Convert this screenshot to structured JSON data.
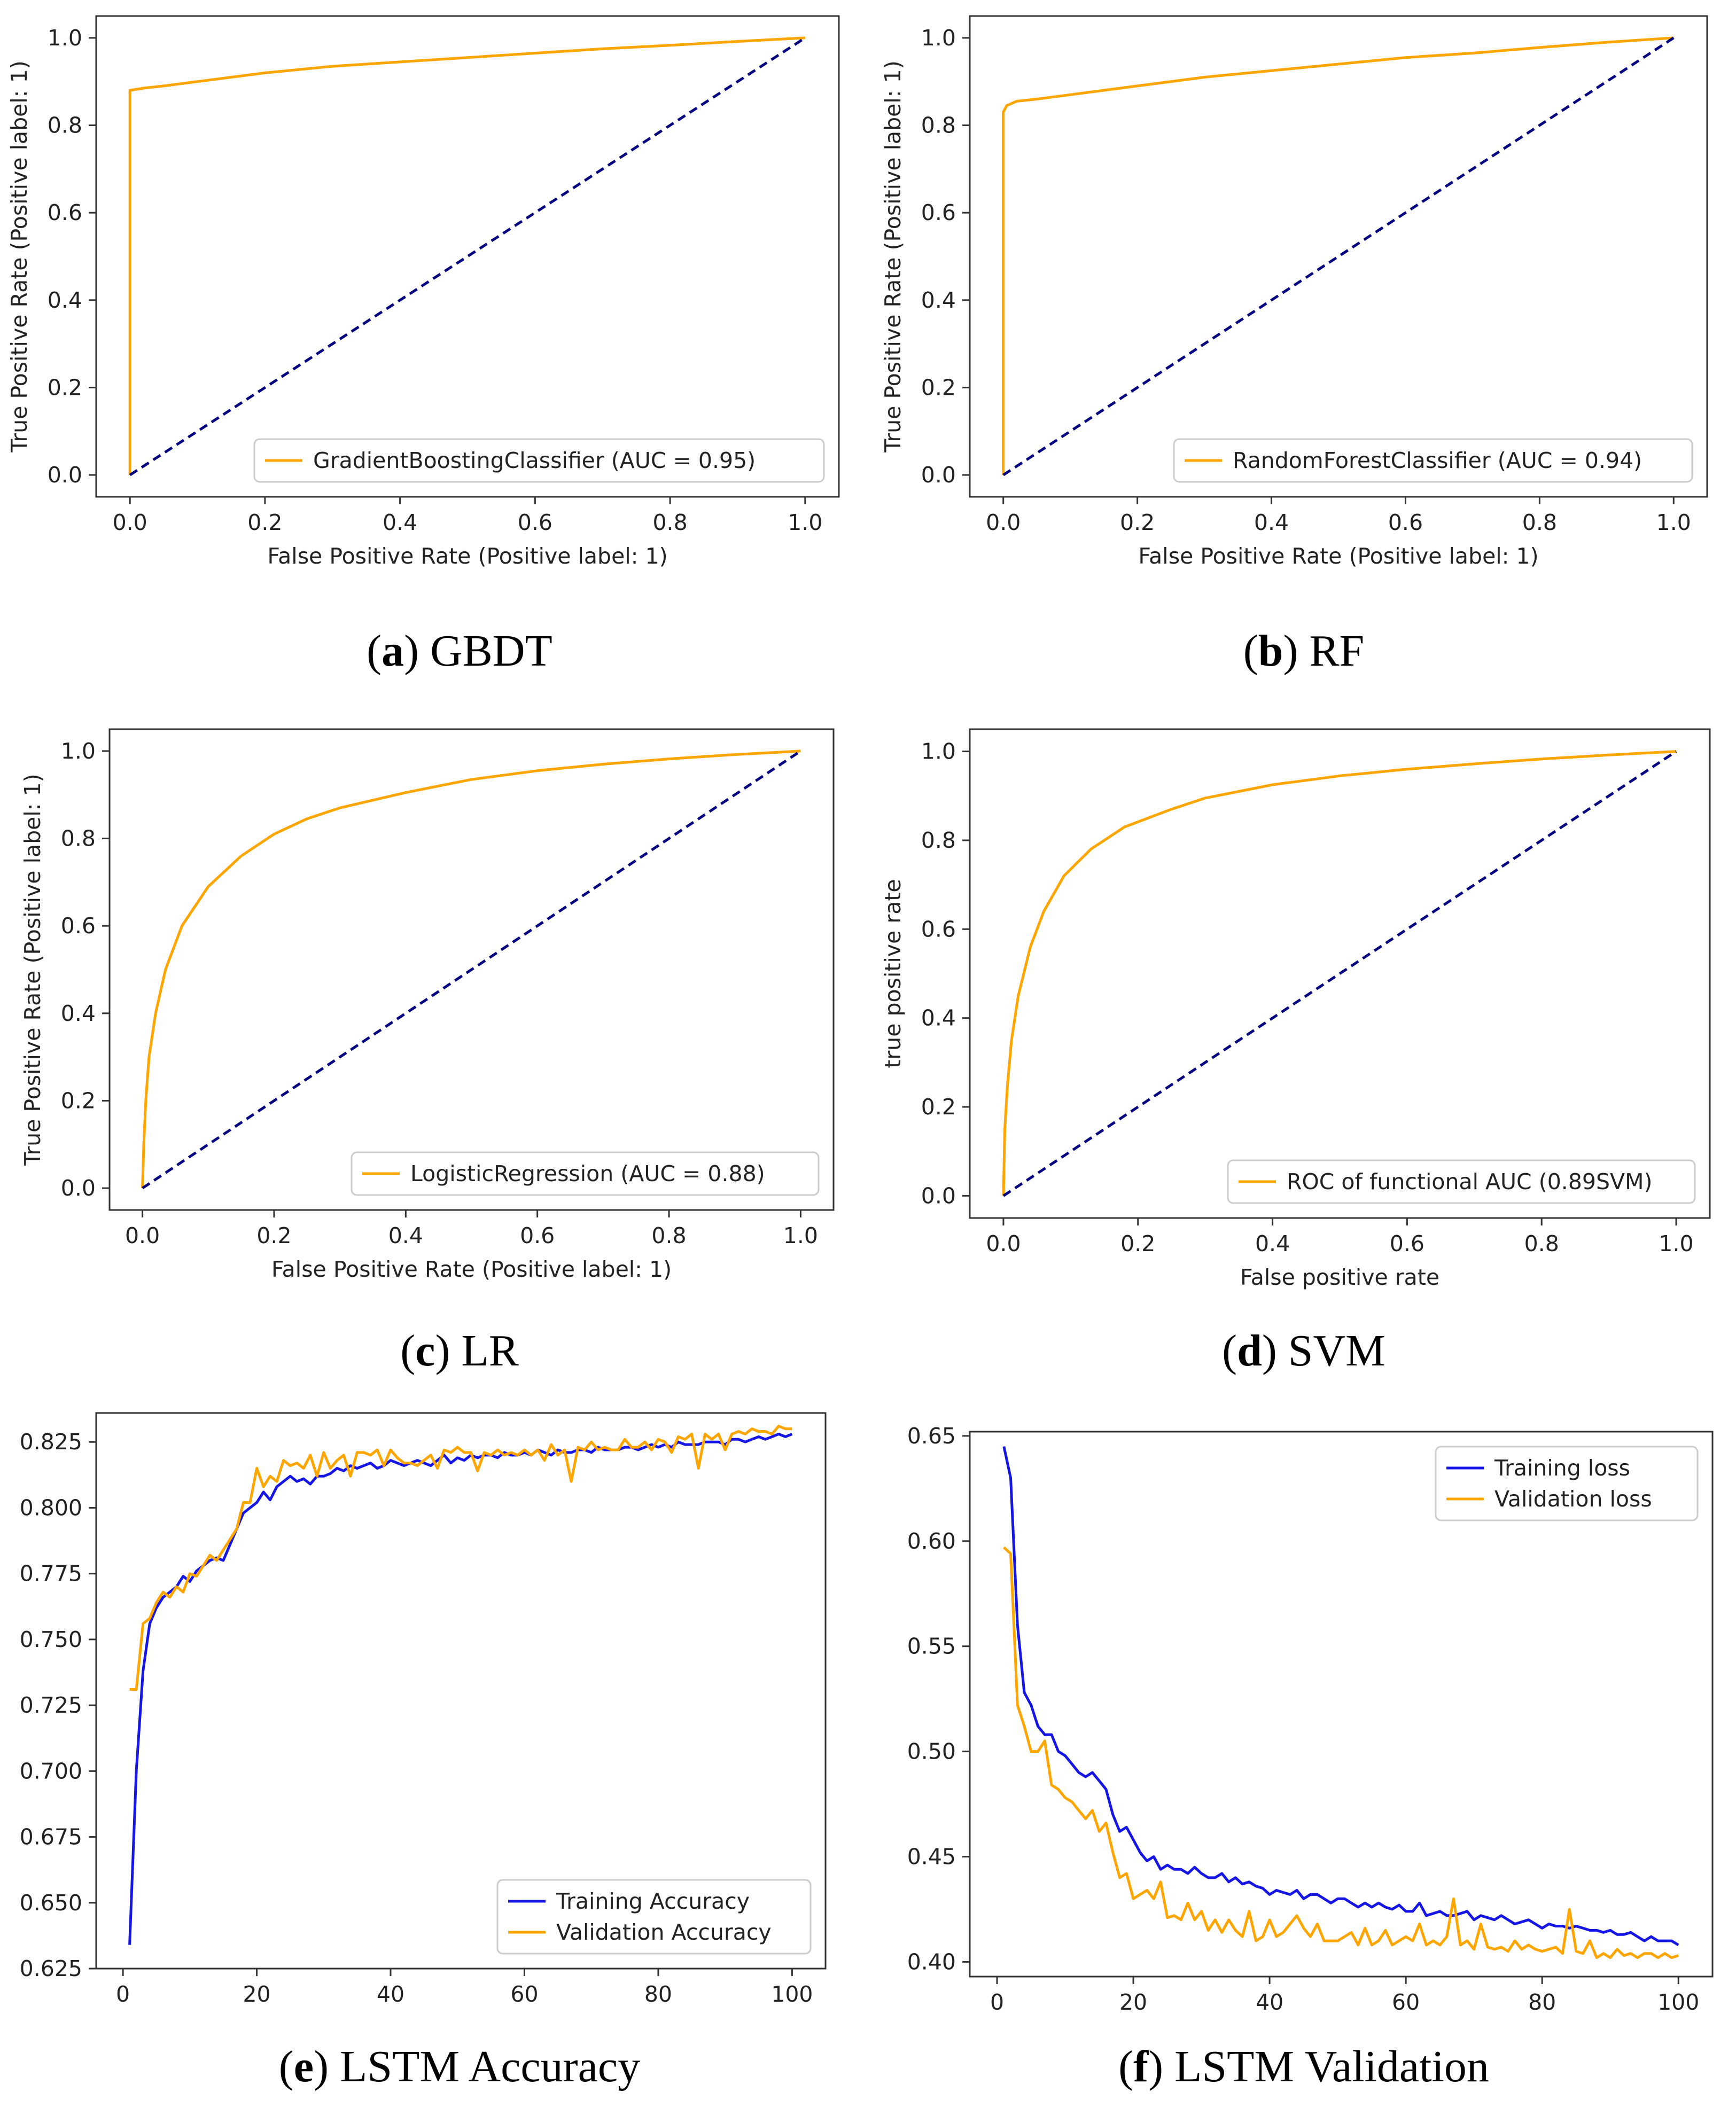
{
  "colors": {
    "orange": "#FFA500",
    "navy": "#000080",
    "blue": "#1515E6",
    "frame": "#333333"
  },
  "captions": [
    {
      "letter": "a",
      "text": " GBDT"
    },
    {
      "letter": "b",
      "text": " RF"
    },
    {
      "letter": "c",
      "text": " LR"
    },
    {
      "letter": "d",
      "text": " SVM"
    },
    {
      "letter": "e",
      "text": " LSTM Accuracy"
    },
    {
      "letter": "f",
      "text": " LSTM Validation"
    }
  ],
  "chart_data": [
    {
      "id": "a",
      "type": "line",
      "xlabel": "False Positive Rate (Positive label: 1)",
      "ylabel": "True Positive Rate (Positive label: 1)",
      "xlim": [
        -0.05,
        1.05
      ],
      "ylim": [
        -0.05,
        1.05
      ],
      "xticks": [
        "0.0",
        "0.2",
        "0.4",
        "0.6",
        "0.8",
        "1.0"
      ],
      "yticks": [
        "0.0",
        "0.2",
        "0.4",
        "0.6",
        "0.8",
        "1.0"
      ],
      "legend": "GradientBoostingClassifier (AUC = 0.95)",
      "legend_loc": "lower-right",
      "series": [
        {
          "name": "GradientBoostingClassifier (AUC = 0.95)",
          "color": "orange",
          "points": [
            [
              0,
              0
            ],
            [
              0,
              0.88
            ],
            [
              0.02,
              0.885
            ],
            [
              0.05,
              0.89
            ],
            [
              0.1,
              0.9
            ],
            [
              0.2,
              0.92
            ],
            [
              0.3,
              0.935
            ],
            [
              0.4,
              0.945
            ],
            [
              0.5,
              0.955
            ],
            [
              0.6,
              0.965
            ],
            [
              0.7,
              0.975
            ],
            [
              0.8,
              0.983
            ],
            [
              0.9,
              0.992
            ],
            [
              1,
              1
            ]
          ]
        },
        {
          "name": "chance",
          "color": "navy",
          "dashed": true,
          "points": [
            [
              0,
              0
            ],
            [
              1,
              1
            ]
          ]
        }
      ]
    },
    {
      "id": "b",
      "type": "line",
      "xlabel": "False Positive Rate (Positive label: 1)",
      "ylabel": "True Positive Rate (Positive label: 1)",
      "xlim": [
        -0.05,
        1.05
      ],
      "ylim": [
        -0.05,
        1.05
      ],
      "xticks": [
        "0.0",
        "0.2",
        "0.4",
        "0.6",
        "0.8",
        "1.0"
      ],
      "yticks": [
        "0.0",
        "0.2",
        "0.4",
        "0.6",
        "0.8",
        "1.0"
      ],
      "legend": "RandomForestClassifier (AUC = 0.94)",
      "legend_loc": "lower-right",
      "series": [
        {
          "name": "RandomForestClassifier (AUC = 0.94)",
          "color": "orange",
          "points": [
            [
              0,
              0
            ],
            [
              0,
              0.83
            ],
            [
              0.005,
              0.845
            ],
            [
              0.02,
              0.855
            ],
            [
              0.05,
              0.86
            ],
            [
              0.1,
              0.87
            ],
            [
              0.2,
              0.89
            ],
            [
              0.3,
              0.91
            ],
            [
              0.4,
              0.925
            ],
            [
              0.5,
              0.94
            ],
            [
              0.6,
              0.955
            ],
            [
              0.7,
              0.965
            ],
            [
              0.8,
              0.978
            ],
            [
              0.9,
              0.99
            ],
            [
              1,
              1
            ]
          ]
        },
        {
          "name": "chance",
          "color": "navy",
          "dashed": true,
          "points": [
            [
              0,
              0
            ],
            [
              1,
              1
            ]
          ]
        }
      ]
    },
    {
      "id": "c",
      "type": "line",
      "xlabel": "False Positive Rate (Positive label: 1)",
      "ylabel": "True Positive Rate (Positive label: 1)",
      "xlim": [
        -0.05,
        1.05
      ],
      "ylim": [
        -0.05,
        1.05
      ],
      "xticks": [
        "0.0",
        "0.2",
        "0.4",
        "0.6",
        "0.8",
        "1.0"
      ],
      "yticks": [
        "0.0",
        "0.2",
        "0.4",
        "0.6",
        "0.8",
        "1.0"
      ],
      "legend": "LogisticRegression (AUC = 0.88)",
      "legend_loc": "lower-right",
      "series": [
        {
          "name": "LogisticRegression (AUC = 0.88)",
          "color": "orange",
          "points": [
            [
              0,
              0
            ],
            [
              0.002,
              0.1
            ],
            [
              0.005,
              0.2
            ],
            [
              0.01,
              0.3
            ],
            [
              0.02,
              0.4
            ],
            [
              0.035,
              0.5
            ],
            [
              0.06,
              0.6
            ],
            [
              0.1,
              0.69
            ],
            [
              0.15,
              0.76
            ],
            [
              0.2,
              0.81
            ],
            [
              0.25,
              0.845
            ],
            [
              0.3,
              0.87
            ],
            [
              0.4,
              0.905
            ],
            [
              0.5,
              0.935
            ],
            [
              0.6,
              0.955
            ],
            [
              0.7,
              0.97
            ],
            [
              0.8,
              0.982
            ],
            [
              0.9,
              0.992
            ],
            [
              1,
              1
            ]
          ]
        },
        {
          "name": "chance",
          "color": "navy",
          "dashed": true,
          "points": [
            [
              0,
              0
            ],
            [
              1,
              1
            ]
          ]
        }
      ]
    },
    {
      "id": "d",
      "type": "line",
      "xlabel": "False positive rate",
      "ylabel": "true positive rate",
      "xlim": [
        -0.05,
        1.05
      ],
      "ylim": [
        -0.05,
        1.05
      ],
      "xticks": [
        "0.0",
        "0.2",
        "0.4",
        "0.6",
        "0.8",
        "1.0"
      ],
      "yticks": [
        "0.0",
        "0.2",
        "0.4",
        "0.6",
        "0.8",
        "1.0"
      ],
      "legend": "ROC of functional AUC (0.89SVM)",
      "legend_loc": "lower-right",
      "series": [
        {
          "name": "ROC of functional AUC (0.89SVM)",
          "color": "orange",
          "points": [
            [
              0,
              0
            ],
            [
              0.002,
              0.15
            ],
            [
              0.006,
              0.25
            ],
            [
              0.012,
              0.35
            ],
            [
              0.022,
              0.45
            ],
            [
              0.04,
              0.56
            ],
            [
              0.06,
              0.64
            ],
            [
              0.09,
              0.72
            ],
            [
              0.13,
              0.78
            ],
            [
              0.18,
              0.83
            ],
            [
              0.25,
              0.87
            ],
            [
              0.3,
              0.895
            ],
            [
              0.4,
              0.925
            ],
            [
              0.5,
              0.945
            ],
            [
              0.6,
              0.96
            ],
            [
              0.7,
              0.972
            ],
            [
              0.8,
              0.983
            ],
            [
              0.9,
              0.992
            ],
            [
              1,
              1
            ]
          ]
        },
        {
          "name": "chance",
          "color": "navy",
          "dashed": true,
          "points": [
            [
              0,
              0
            ],
            [
              1,
              1
            ]
          ]
        }
      ]
    },
    {
      "id": "e",
      "type": "line",
      "xlabel": "",
      "ylabel": "",
      "xlim": [
        -4.0,
        105.0
      ],
      "ylim": [
        0.625,
        0.836
      ],
      "xticks": [
        "0",
        "20",
        "40",
        "60",
        "80",
        "100"
      ],
      "yticks": [
        "0.625",
        "0.650",
        "0.675",
        "0.700",
        "0.725",
        "0.750",
        "0.775",
        "0.800",
        "0.825"
      ],
      "legend_loc": "lower-right",
      "series": [
        {
          "name": "Training Accuracy",
          "color": "blue",
          "y": [
            0.634,
            0.7,
            0.738,
            0.756,
            0.762,
            0.766,
            0.768,
            0.77,
            0.774,
            0.772,
            0.776,
            0.778,
            0.78,
            0.781,
            0.78,
            0.786,
            0.792,
            0.798,
            0.8,
            0.802,
            0.806,
            0.803,
            0.808,
            0.81,
            0.812,
            0.81,
            0.811,
            0.809,
            0.812,
            0.812,
            0.813,
            0.815,
            0.814,
            0.816,
            0.815,
            0.816,
            0.817,
            0.815,
            0.816,
            0.818,
            0.817,
            0.816,
            0.817,
            0.818,
            0.817,
            0.816,
            0.818,
            0.82,
            0.817,
            0.819,
            0.818,
            0.82,
            0.819,
            0.82,
            0.82,
            0.819,
            0.821,
            0.82,
            0.82,
            0.821,
            0.82,
            0.822,
            0.821,
            0.82,
            0.822,
            0.821,
            0.821,
            0.822,
            0.822,
            0.821,
            0.823,
            0.822,
            0.822,
            0.822,
            0.823,
            0.823,
            0.822,
            0.823,
            0.824,
            0.823,
            0.824,
            0.823,
            0.825,
            0.824,
            0.824,
            0.824,
            0.825,
            0.825,
            0.825,
            0.824,
            0.826,
            0.826,
            0.825,
            0.826,
            0.827,
            0.826,
            0.827,
            0.828,
            0.827,
            0.828
          ]
        },
        {
          "name": "Validation Accuracy",
          "color": "orange",
          "y": [
            0.731,
            0.731,
            0.756,
            0.758,
            0.764,
            0.768,
            0.766,
            0.77,
            0.768,
            0.775,
            0.774,
            0.778,
            0.782,
            0.78,
            0.784,
            0.788,
            0.792,
            0.802,
            0.802,
            0.815,
            0.808,
            0.812,
            0.81,
            0.818,
            0.816,
            0.817,
            0.815,
            0.82,
            0.812,
            0.821,
            0.815,
            0.818,
            0.82,
            0.812,
            0.821,
            0.821,
            0.82,
            0.822,
            0.816,
            0.822,
            0.819,
            0.817,
            0.817,
            0.816,
            0.818,
            0.82,
            0.815,
            0.822,
            0.821,
            0.823,
            0.821,
            0.821,
            0.814,
            0.821,
            0.82,
            0.822,
            0.82,
            0.821,
            0.82,
            0.822,
            0.82,
            0.822,
            0.818,
            0.824,
            0.82,
            0.822,
            0.81,
            0.823,
            0.822,
            0.825,
            0.822,
            0.823,
            0.822,
            0.822,
            0.826,
            0.823,
            0.823,
            0.825,
            0.822,
            0.826,
            0.825,
            0.821,
            0.827,
            0.826,
            0.828,
            0.815,
            0.828,
            0.826,
            0.828,
            0.822,
            0.828,
            0.829,
            0.828,
            0.83,
            0.829,
            0.829,
            0.828,
            0.831,
            0.83,
            0.83
          ]
        }
      ]
    },
    {
      "id": "f",
      "type": "line",
      "xlabel": "",
      "ylabel": "",
      "xlim": [
        -4.0,
        105.0
      ],
      "ylim": [
        0.393,
        0.652
      ],
      "xticks": [
        "0",
        "20",
        "40",
        "60",
        "80",
        "100"
      ],
      "yticks": [
        "0.40",
        "0.45",
        "0.50",
        "0.55",
        "0.60",
        "0.65"
      ],
      "legend_loc": "top-right",
      "series": [
        {
          "name": "Training loss",
          "color": "blue",
          "y": [
            0.645,
            0.63,
            0.56,
            0.528,
            0.522,
            0.512,
            0.508,
            0.508,
            0.5,
            0.498,
            0.494,
            0.49,
            0.488,
            0.49,
            0.486,
            0.482,
            0.47,
            0.462,
            0.464,
            0.458,
            0.452,
            0.448,
            0.45,
            0.444,
            0.446,
            0.444,
            0.444,
            0.442,
            0.445,
            0.442,
            0.44,
            0.44,
            0.442,
            0.438,
            0.44,
            0.437,
            0.438,
            0.436,
            0.435,
            0.432,
            0.434,
            0.433,
            0.432,
            0.434,
            0.43,
            0.432,
            0.432,
            0.43,
            0.428,
            0.43,
            0.43,
            0.428,
            0.426,
            0.428,
            0.426,
            0.428,
            0.426,
            0.425,
            0.427,
            0.424,
            0.424,
            0.428,
            0.422,
            0.423,
            0.424,
            0.422,
            0.422,
            0.423,
            0.424,
            0.42,
            0.422,
            0.421,
            0.42,
            0.422,
            0.42,
            0.418,
            0.419,
            0.42,
            0.418,
            0.416,
            0.418,
            0.417,
            0.417,
            0.416,
            0.417,
            0.416,
            0.415,
            0.415,
            0.414,
            0.415,
            0.413,
            0.413,
            0.414,
            0.412,
            0.41,
            0.412,
            0.41,
            0.41,
            0.41,
            0.408
          ]
        },
        {
          "name": "Validation loss",
          "color": "orange",
          "y": [
            0.597,
            0.594,
            0.522,
            0.512,
            0.5,
            0.5,
            0.505,
            0.484,
            0.482,
            0.478,
            0.476,
            0.472,
            0.468,
            0.472,
            0.462,
            0.466,
            0.452,
            0.44,
            0.442,
            0.43,
            0.432,
            0.434,
            0.43,
            0.438,
            0.421,
            0.422,
            0.42,
            0.428,
            0.42,
            0.424,
            0.415,
            0.42,
            0.414,
            0.42,
            0.415,
            0.412,
            0.424,
            0.41,
            0.412,
            0.42,
            0.412,
            0.414,
            0.418,
            0.422,
            0.416,
            0.412,
            0.418,
            0.41,
            0.41,
            0.41,
            0.412,
            0.414,
            0.408,
            0.416,
            0.408,
            0.41,
            0.415,
            0.408,
            0.41,
            0.412,
            0.41,
            0.418,
            0.408,
            0.41,
            0.408,
            0.412,
            0.43,
            0.408,
            0.41,
            0.406,
            0.418,
            0.407,
            0.406,
            0.407,
            0.405,
            0.41,
            0.406,
            0.408,
            0.406,
            0.405,
            0.406,
            0.407,
            0.404,
            0.425,
            0.405,
            0.404,
            0.41,
            0.402,
            0.404,
            0.402,
            0.406,
            0.403,
            0.404,
            0.402,
            0.404,
            0.404,
            0.402,
            0.404,
            0.402,
            0.403
          ]
        }
      ]
    }
  ]
}
